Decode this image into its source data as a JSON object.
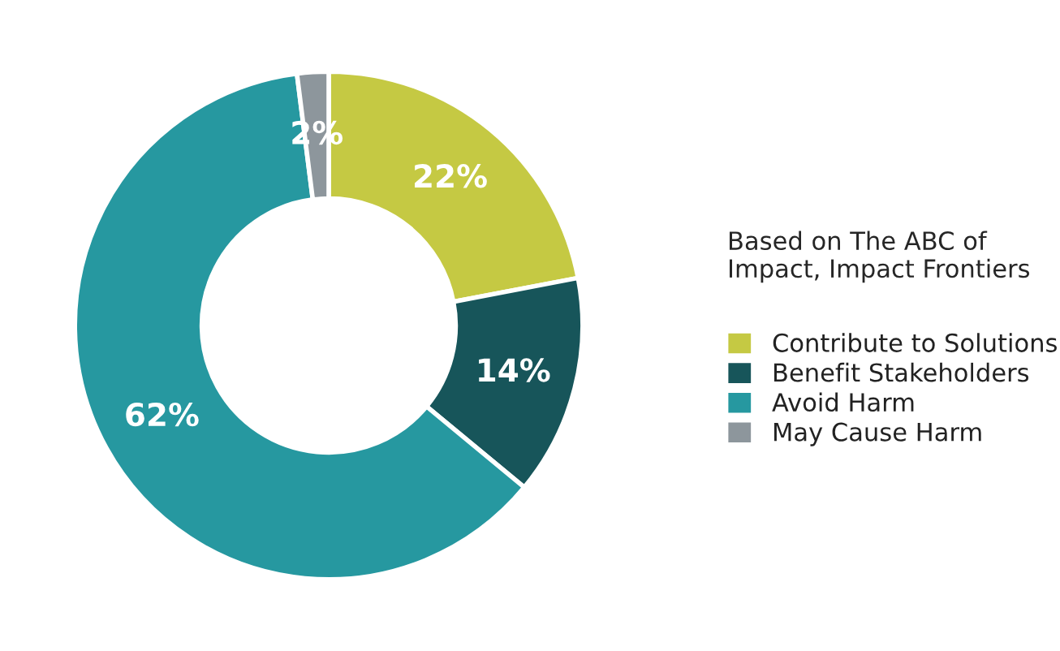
{
  "chart_data": {
    "type": "donut",
    "categories": [
      "Contribute to Solutions",
      "Benefit Stakeholders",
      "Avoid Harm",
      "May Cause Harm"
    ],
    "values": [
      22,
      14,
      62,
      2
    ],
    "colors": [
      "#c5c943",
      "#17555a",
      "#2698a0",
      "#8d969c"
    ],
    "value_labels": [
      "22%",
      "14%",
      "62%",
      "2%"
    ],
    "legend_title": "Based on The ABC of\nImpact, Impact Frontiers",
    "legend": "right"
  }
}
